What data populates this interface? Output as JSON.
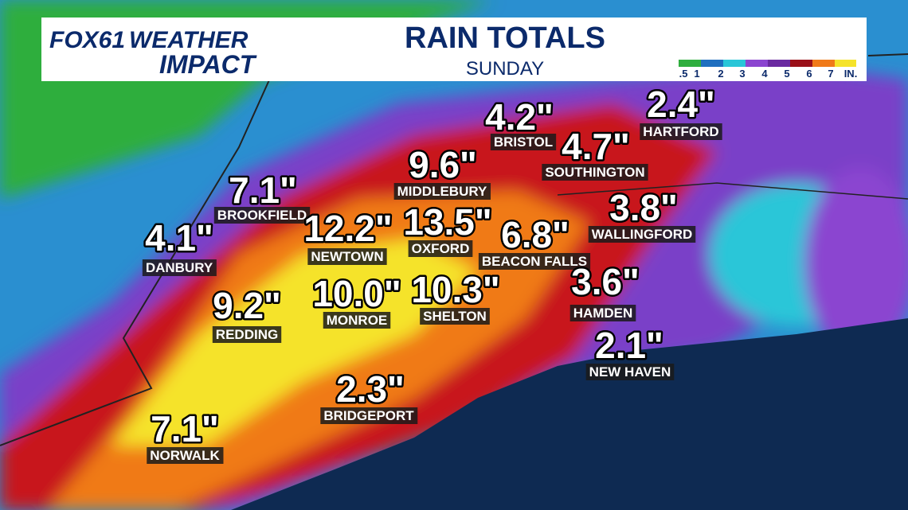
{
  "header": {
    "logo": {
      "brand": "FOX61",
      "line1": "WEATHER",
      "line2": "IMPACT"
    },
    "title": "RAIN TOTALS",
    "subtitle": "SUNDAY"
  },
  "legend": {
    "labels": [
      ".5",
      "1",
      "2",
      "3",
      "4",
      "5",
      "6",
      "7"
    ],
    "unit": "IN."
  },
  "towns": [
    {
      "name": "BRISTOL",
      "total": "4.2\""
    },
    {
      "name": "HARTFORD",
      "total": "2.4\""
    },
    {
      "name": "SOUTHINGTON",
      "total": "4.7\""
    },
    {
      "name": "MIDDLEBURY",
      "total": "9.6\""
    },
    {
      "name": "BROOKFIELD",
      "total": "7.1\""
    },
    {
      "name": "WALLINGFORD",
      "total": "3.8\""
    },
    {
      "name": "DANBURY",
      "total": "4.1\""
    },
    {
      "name": "NEWTOWN",
      "total": "12.2\""
    },
    {
      "name": "OXFORD",
      "total": "13.5\""
    },
    {
      "name": "BEACON FALLS",
      "total": "6.8\""
    },
    {
      "name": "MONROE",
      "total": "10.0\""
    },
    {
      "name": "SHELTON",
      "total": "10.3\""
    },
    {
      "name": "HAMDEN",
      "total": "3.6\""
    },
    {
      "name": "REDDING",
      "total": "9.2\""
    },
    {
      "name": "NEW HAVEN",
      "total": "2.1\""
    },
    {
      "name": "BRIDGEPORT",
      "total": "2.3\""
    },
    {
      "name": "NORWALK",
      "total": "7.1\""
    }
  ]
}
